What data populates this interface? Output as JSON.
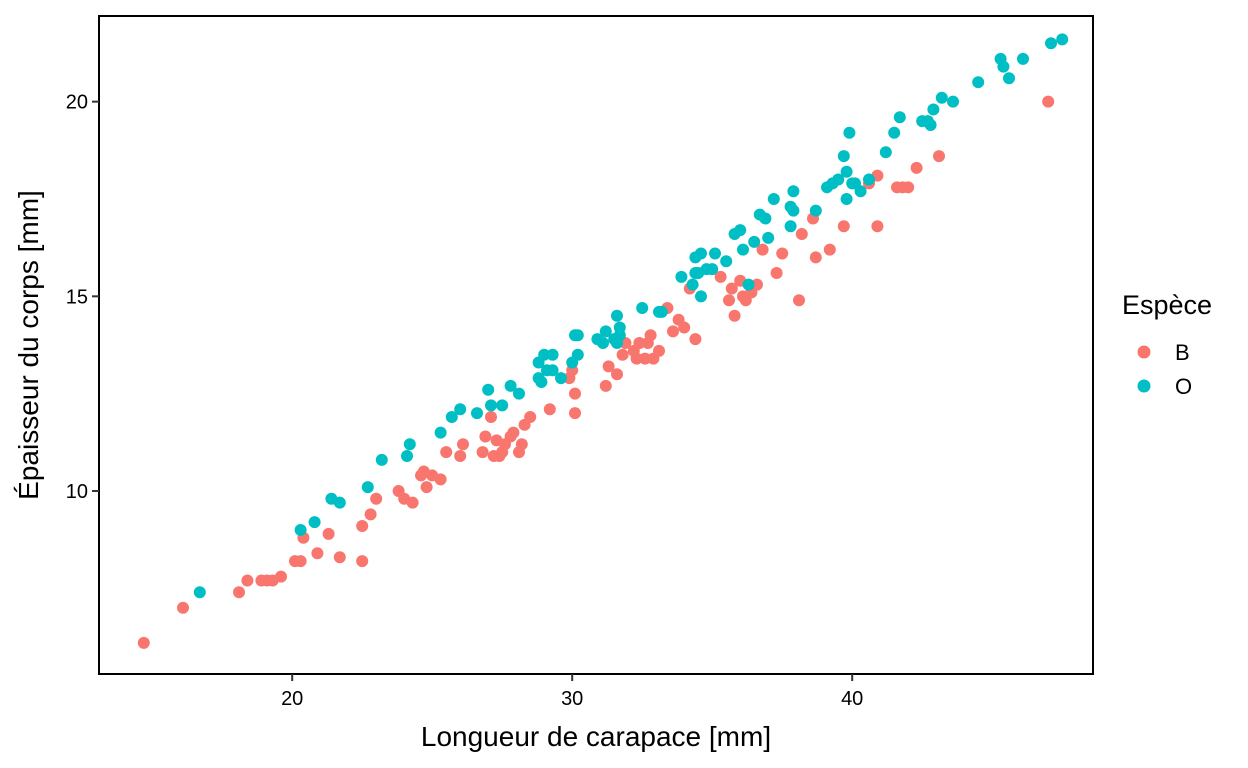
{
  "chart_data": {
    "type": "scatter",
    "xlabel": "Longueur de carapace  [mm]",
    "ylabel": "Épaisseur du corps  [mm]",
    "xlim": [
      13.1,
      48.6
    ],
    "ylim": [
      5.3,
      22.2
    ],
    "xticks": [
      20,
      30,
      40
    ],
    "yticks": [
      10,
      15,
      20
    ],
    "xtick_labels": [
      "20",
      "30",
      "40"
    ],
    "ytick_labels": [
      "10",
      "15",
      "20"
    ],
    "grid": false,
    "legend": {
      "title": "Espèce",
      "placement": "right"
    },
    "series": [
      {
        "name": "B",
        "color": "#F8766D",
        "points": [
          [
            14.7,
            6.1
          ],
          [
            16.1,
            7.0
          ],
          [
            18.1,
            7.4
          ],
          [
            18.4,
            7.7
          ],
          [
            18.9,
            7.7
          ],
          [
            19.1,
            7.7
          ],
          [
            19.3,
            7.7
          ],
          [
            19.6,
            7.8
          ],
          [
            20.1,
            8.2
          ],
          [
            20.3,
            8.2
          ],
          [
            20.4,
            8.8
          ],
          [
            20.9,
            8.4
          ],
          [
            21.3,
            8.9
          ],
          [
            21.7,
            8.3
          ],
          [
            22.5,
            8.2
          ],
          [
            22.5,
            9.1
          ],
          [
            22.8,
            9.4
          ],
          [
            23.0,
            9.8
          ],
          [
            23.8,
            10.0
          ],
          [
            24.0,
            9.8
          ],
          [
            24.3,
            9.7
          ],
          [
            24.6,
            10.4
          ],
          [
            24.7,
            10.5
          ],
          [
            24.8,
            10.1
          ],
          [
            25.0,
            10.4
          ],
          [
            25.3,
            10.3
          ],
          [
            25.5,
            11.0
          ],
          [
            26.0,
            10.9
          ],
          [
            26.1,
            11.2
          ],
          [
            26.8,
            11.0
          ],
          [
            26.9,
            11.4
          ],
          [
            27.1,
            11.9
          ],
          [
            27.2,
            10.9
          ],
          [
            27.3,
            11.3
          ],
          [
            27.4,
            10.9
          ],
          [
            27.5,
            11.0
          ],
          [
            27.6,
            11.2
          ],
          [
            27.8,
            11.4
          ],
          [
            27.9,
            11.5
          ],
          [
            28.1,
            11.0
          ],
          [
            28.2,
            11.2
          ],
          [
            28.3,
            11.7
          ],
          [
            28.5,
            11.9
          ],
          [
            29.2,
            12.1
          ],
          [
            29.9,
            12.9
          ],
          [
            30.0,
            13.1
          ],
          [
            30.1,
            12.5
          ],
          [
            30.1,
            12.0
          ],
          [
            31.2,
            12.7
          ],
          [
            31.3,
            13.2
          ],
          [
            31.6,
            13.0
          ],
          [
            31.8,
            13.5
          ],
          [
            31.9,
            13.8
          ],
          [
            32.2,
            13.6
          ],
          [
            32.3,
            13.4
          ],
          [
            32.4,
            13.8
          ],
          [
            32.6,
            13.4
          ],
          [
            32.7,
            13.8
          ],
          [
            32.8,
            14.0
          ],
          [
            32.9,
            13.4
          ],
          [
            33.1,
            13.6
          ],
          [
            33.4,
            14.7
          ],
          [
            33.6,
            14.1
          ],
          [
            33.8,
            14.4
          ],
          [
            34.0,
            14.2
          ],
          [
            34.2,
            15.2
          ],
          [
            34.4,
            13.9
          ],
          [
            35.3,
            15.5
          ],
          [
            35.6,
            14.9
          ],
          [
            35.7,
            15.2
          ],
          [
            35.8,
            14.5
          ],
          [
            36.0,
            15.4
          ],
          [
            36.1,
            15.0
          ],
          [
            36.2,
            14.9
          ],
          [
            36.4,
            15.1
          ],
          [
            36.6,
            15.3
          ],
          [
            36.8,
            16.2
          ],
          [
            37.3,
            15.6
          ],
          [
            37.5,
            16.1
          ],
          [
            38.1,
            14.9
          ],
          [
            38.2,
            16.6
          ],
          [
            38.6,
            17.0
          ],
          [
            38.7,
            16.0
          ],
          [
            39.2,
            16.2
          ],
          [
            39.7,
            16.8
          ],
          [
            40.6,
            17.9
          ],
          [
            40.9,
            18.1
          ],
          [
            40.9,
            16.8
          ],
          [
            41.6,
            17.8
          ],
          [
            41.8,
            17.8
          ],
          [
            42.0,
            17.8
          ],
          [
            42.3,
            18.3
          ],
          [
            43.1,
            18.6
          ],
          [
            47.0,
            20.0
          ]
        ]
      },
      {
        "name": "O",
        "color": "#00BFC4",
        "points": [
          [
            16.7,
            7.4
          ],
          [
            20.3,
            9.0
          ],
          [
            20.8,
            9.2
          ],
          [
            21.4,
            9.8
          ],
          [
            21.7,
            9.7
          ],
          [
            22.7,
            10.1
          ],
          [
            23.2,
            10.8
          ],
          [
            24.1,
            10.9
          ],
          [
            24.2,
            11.2
          ],
          [
            25.3,
            11.5
          ],
          [
            25.7,
            11.9
          ],
          [
            26.0,
            12.1
          ],
          [
            26.6,
            12.0
          ],
          [
            27.0,
            12.6
          ],
          [
            27.1,
            12.2
          ],
          [
            27.5,
            12.2
          ],
          [
            27.8,
            12.7
          ],
          [
            28.1,
            12.5
          ],
          [
            28.8,
            12.9
          ],
          [
            28.8,
            13.3
          ],
          [
            28.9,
            12.8
          ],
          [
            29.0,
            13.5
          ],
          [
            29.1,
            13.1
          ],
          [
            29.3,
            13.5
          ],
          [
            29.3,
            13.1
          ],
          [
            29.6,
            12.9
          ],
          [
            30.0,
            13.3
          ],
          [
            30.1,
            14.0
          ],
          [
            30.2,
            14.0
          ],
          [
            30.2,
            13.5
          ],
          [
            30.9,
            13.9
          ],
          [
            31.1,
            13.8
          ],
          [
            31.2,
            14.1
          ],
          [
            31.5,
            13.9
          ],
          [
            31.6,
            14.5
          ],
          [
            31.6,
            13.8
          ],
          [
            31.7,
            14.2
          ],
          [
            31.7,
            14.0
          ],
          [
            32.5,
            14.7
          ],
          [
            33.1,
            14.6
          ],
          [
            33.2,
            14.6
          ],
          [
            33.9,
            15.5
          ],
          [
            34.3,
            15.3
          ],
          [
            34.4,
            15.6
          ],
          [
            34.5,
            15.6
          ],
          [
            34.6,
            16.1
          ],
          [
            34.4,
            16.0
          ],
          [
            34.6,
            15.0
          ],
          [
            34.8,
            15.7
          ],
          [
            35.0,
            15.7
          ],
          [
            35.1,
            16.1
          ],
          [
            35.5,
            15.9
          ],
          [
            35.8,
            16.6
          ],
          [
            36.0,
            16.7
          ],
          [
            36.1,
            16.2
          ],
          [
            36.3,
            15.3
          ],
          [
            36.5,
            16.4
          ],
          [
            36.7,
            17.1
          ],
          [
            36.9,
            17.0
          ],
          [
            37.0,
            16.5
          ],
          [
            37.2,
            17.5
          ],
          [
            37.8,
            16.8
          ],
          [
            37.8,
            17.3
          ],
          [
            37.9,
            17.7
          ],
          [
            37.9,
            17.2
          ],
          [
            38.7,
            17.2
          ],
          [
            39.1,
            17.8
          ],
          [
            39.3,
            17.9
          ],
          [
            39.5,
            18.0
          ],
          [
            39.7,
            18.6
          ],
          [
            39.8,
            17.5
          ],
          [
            39.8,
            18.2
          ],
          [
            39.9,
            19.2
          ],
          [
            40.0,
            17.9
          ],
          [
            40.1,
            17.9
          ],
          [
            40.3,
            17.7
          ],
          [
            40.6,
            18.0
          ],
          [
            41.2,
            18.7
          ],
          [
            41.5,
            19.2
          ],
          [
            41.7,
            19.6
          ],
          [
            42.5,
            19.5
          ],
          [
            42.7,
            19.5
          ],
          [
            42.8,
            19.4
          ],
          [
            42.9,
            19.8
          ],
          [
            43.2,
            20.1
          ],
          [
            43.6,
            20.0
          ],
          [
            44.5,
            20.5
          ],
          [
            45.3,
            21.1
          ],
          [
            45.4,
            20.9
          ],
          [
            45.6,
            20.6
          ],
          [
            46.1,
            21.1
          ],
          [
            47.1,
            21.5
          ],
          [
            47.5,
            21.6
          ]
        ]
      }
    ]
  }
}
